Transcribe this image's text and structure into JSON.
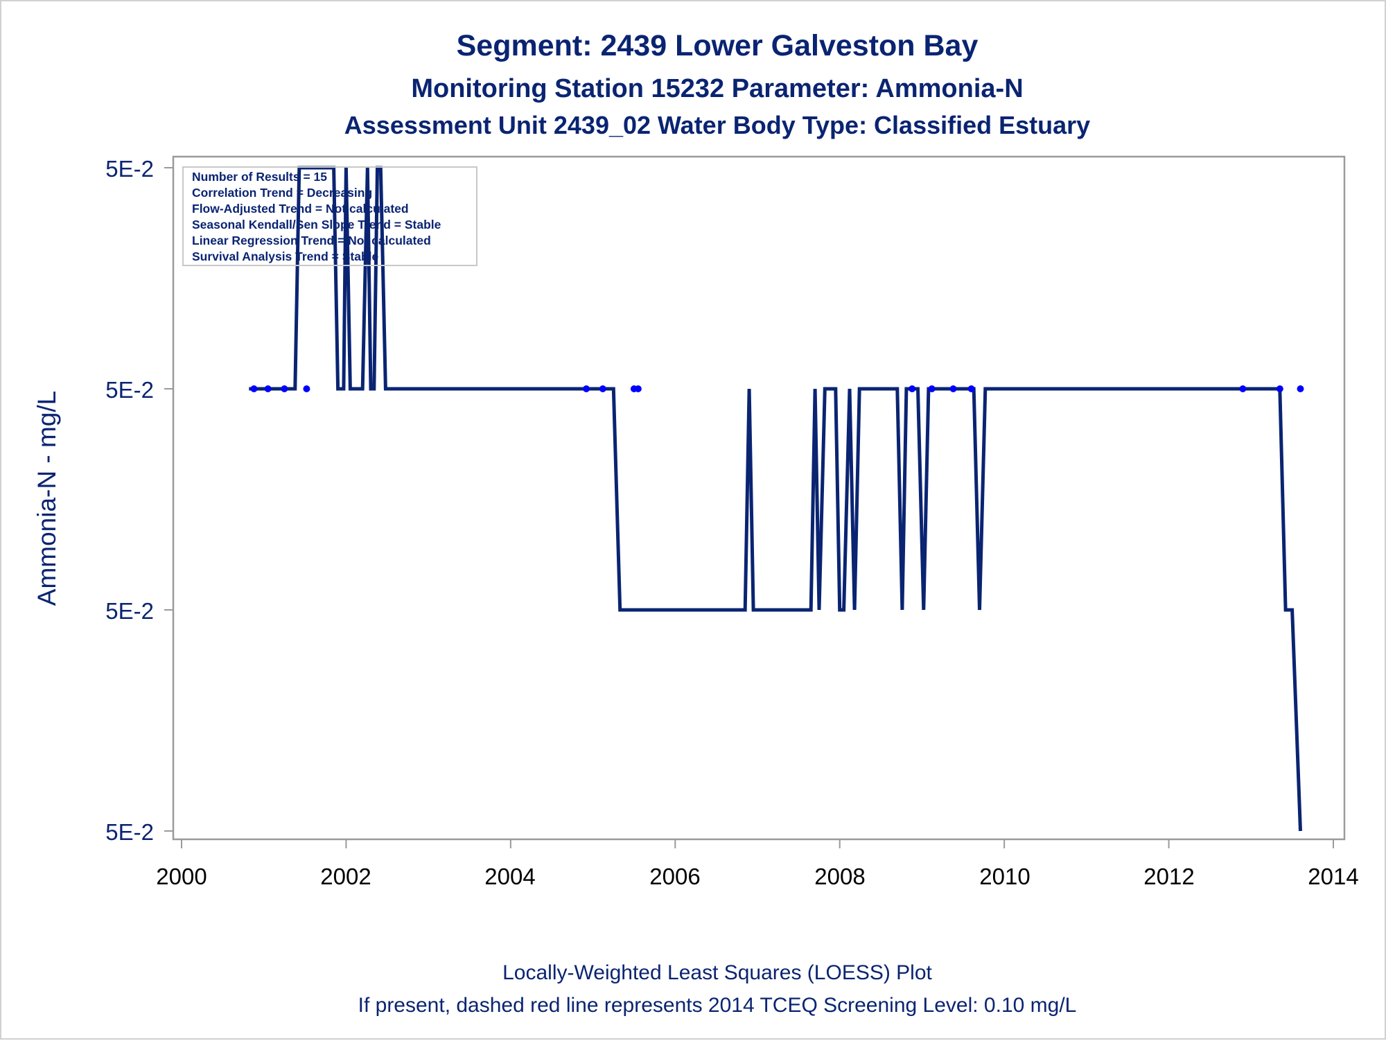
{
  "chart_data": {
    "type": "line",
    "title": "Segment: 2439  Lower Galveston Bay",
    "subtitle": "Monitoring Station 15232 Parameter: Ammonia-N",
    "subtitle2": "Assessment Unit 2439_02   Water Body Type: Classified Estuary",
    "xlabel": "",
    "ylabel": "Ammonia-N - mg/L",
    "xlim": [
      2000,
      2014
    ],
    "x_ticks": [
      "2000",
      "2002",
      "2004",
      "2006",
      "2008",
      "2010",
      "2012",
      "2014"
    ],
    "y_tick_labels": [
      "5E-2",
      "5E-2",
      "5E-2",
      "5E-2"
    ],
    "grid": false,
    "color": "#0a2472",
    "marker_color": "#0000ff",
    "inset_lines": [
      "Number of Results = 15",
      "Correlation Trend = Decreasing",
      "Flow-Adjusted Trend = Not calculated",
      "Seasonal Kendall/Sen Slope Trend = Stable",
      "Linear Regression Trend = Not calculated",
      "Survival Analysis Trend = Stable"
    ],
    "points": {
      "x": [
        2000.88,
        2001.05,
        2001.25,
        2001.52,
        2004.92,
        2005.12,
        2005.5,
        2005.55,
        2008.88,
        2009.12,
        2009.38,
        2009.6,
        2012.9,
        2013.35,
        2013.6
      ],
      "level": [
        2,
        2,
        2,
        2,
        2,
        2,
        2,
        2,
        2,
        2,
        2,
        2,
        2,
        2,
        2
      ]
    },
    "series": [
      {
        "x": [
          2000.82,
          2001.38,
          2001.43,
          2001.85,
          2001.9,
          2001.97,
          2002.0,
          2002.05,
          2002.08,
          2002.2,
          2002.26,
          2002.3,
          2002.34,
          2002.38,
          2002.42,
          2002.48,
          2005.25,
          2005.33,
          2006.85,
          2006.9,
          2006.95,
          2007.65,
          2007.7,
          2007.75,
          2007.82,
          2007.95,
          2008.0,
          2008.05,
          2008.12,
          2008.18,
          2008.24,
          2008.7,
          2008.76,
          2008.81,
          2008.95,
          2009.02,
          2009.08,
          2009.63,
          2009.7,
          2009.77,
          2013.35,
          2013.42,
          2013.5,
          2013.6
        ],
        "level": [
          2,
          2,
          3,
          3,
          2,
          2,
          3,
          2,
          2,
          2,
          3,
          2,
          2,
          3,
          3,
          2,
          2,
          1,
          1,
          2,
          1,
          1,
          2,
          1,
          2,
          2,
          1,
          1,
          2,
          1,
          2,
          2,
          1,
          2,
          2,
          1,
          2,
          2,
          1,
          2,
          2,
          1,
          1,
          0
        ]
      }
    ]
  },
  "footer": {
    "line1": "Locally-Weighted Least Squares (LOESS) Plot",
    "line2": "If present, dashed red line represents 2014 TCEQ Screening Level: 0.10 mg/L"
  }
}
